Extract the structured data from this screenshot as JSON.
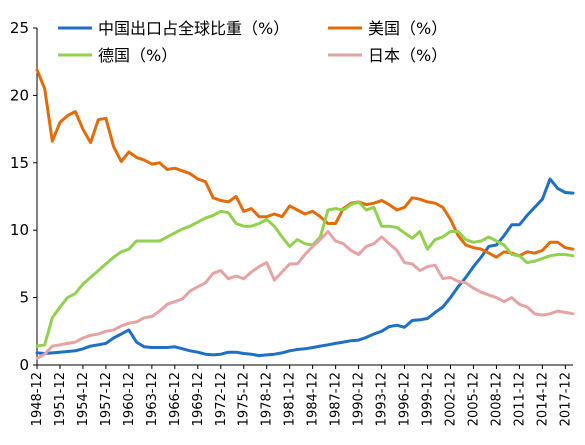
{
  "chart_data": {
    "type": "line",
    "title": "",
    "xlabel": "",
    "ylabel": "",
    "ylim": [
      0,
      25
    ],
    "yticks": [
      0,
      5,
      10,
      15,
      20,
      25
    ],
    "xlim": [
      1948,
      2018
    ],
    "xticks": [
      "1948-12",
      "1951-12",
      "1954-12",
      "1957-12",
      "1960-12",
      "1963-12",
      "1966-12",
      "1969-12",
      "1972-12",
      "1975-12",
      "1978-12",
      "1981-12",
      "1984-12",
      "1987-12",
      "1990-12",
      "1993-12",
      "1996-12",
      "1999-12",
      "2002-12",
      "2005-12",
      "2008-12",
      "2011-12",
      "2014-12",
      "2017-12"
    ],
    "grid": false,
    "legend_position": "top",
    "series": [
      {
        "name": "中国出口占全球比重（%）",
        "color": "#1F6FC5",
        "x": [
          1948,
          1949,
          1950,
          1951,
          1952,
          1953,
          1954,
          1955,
          1956,
          1957,
          1958,
          1959,
          1960,
          1961,
          1962,
          1963,
          1964,
          1965,
          1966,
          1967,
          1968,
          1969,
          1970,
          1971,
          1972,
          1973,
          1974,
          1975,
          1976,
          1977,
          1978,
          1979,
          1980,
          1981,
          1982,
          1983,
          1984,
          1985,
          1986,
          1987,
          1988,
          1989,
          1990,
          1991,
          1992,
          1993,
          1994,
          1995,
          1996,
          1997,
          1998,
          1999,
          2000,
          2001,
          2002,
          2003,
          2004,
          2005,
          2006,
          2007,
          2008,
          2009,
          2010,
          2011,
          2012,
          2013,
          2014,
          2015,
          2016,
          2017,
          2018
        ],
        "y": [
          0.9,
          0.85,
          0.9,
          0.95,
          1.0,
          1.05,
          1.2,
          1.4,
          1.5,
          1.6,
          2.0,
          2.3,
          2.6,
          1.7,
          1.35,
          1.3,
          1.3,
          1.3,
          1.35,
          1.2,
          1.05,
          0.95,
          0.8,
          0.75,
          0.8,
          0.95,
          0.95,
          0.85,
          0.8,
          0.7,
          0.75,
          0.8,
          0.9,
          1.05,
          1.15,
          1.2,
          1.3,
          1.4,
          1.5,
          1.6,
          1.7,
          1.8,
          1.85,
          2.05,
          2.3,
          2.5,
          2.85,
          2.95,
          2.8,
          3.3,
          3.35,
          3.45,
          3.9,
          4.3,
          5.0,
          5.8,
          6.5,
          7.3,
          8.0,
          8.8,
          8.9,
          9.6,
          10.4,
          10.4,
          11.1,
          11.7,
          12.3,
          13.8,
          13.1,
          12.8,
          12.75
        ]
      },
      {
        "name": "美国（%）",
        "color": "#E36C0A",
        "x": [
          1948,
          1949,
          1950,
          1951,
          1952,
          1953,
          1954,
          1955,
          1956,
          1957,
          1958,
          1959,
          1960,
          1961,
          1962,
          1963,
          1964,
          1965,
          1966,
          1967,
          1968,
          1969,
          1970,
          1971,
          1972,
          1973,
          1974,
          1975,
          1976,
          1977,
          1978,
          1979,
          1980,
          1981,
          1982,
          1983,
          1984,
          1985,
          1986,
          1987,
          1988,
          1989,
          1990,
          1991,
          1992,
          1993,
          1994,
          1995,
          1996,
          1997,
          1998,
          1999,
          2000,
          2001,
          2002,
          2003,
          2004,
          2005,
          2006,
          2007,
          2008,
          2009,
          2010,
          2011,
          2012,
          2013,
          2014,
          2015,
          2016,
          2017,
          2018
        ],
        "y": [
          21.9,
          20.5,
          16.6,
          18.0,
          18.5,
          18.8,
          17.5,
          16.5,
          18.2,
          18.3,
          16.2,
          15.1,
          15.8,
          15.4,
          15.2,
          14.9,
          15.0,
          14.5,
          14.6,
          14.4,
          14.2,
          13.8,
          13.6,
          12.4,
          12.2,
          12.1,
          12.5,
          11.4,
          11.6,
          11.0,
          11.0,
          11.2,
          11.0,
          11.8,
          11.5,
          11.2,
          11.4,
          11.0,
          10.5,
          10.5,
          11.6,
          12.0,
          12.1,
          11.9,
          12.0,
          12.2,
          11.9,
          11.5,
          11.7,
          12.4,
          12.3,
          12.1,
          12.0,
          11.7,
          10.8,
          9.6,
          8.9,
          8.7,
          8.6,
          8.3,
          8.0,
          8.4,
          8.3,
          8.1,
          8.4,
          8.3,
          8.5,
          9.1,
          9.1,
          8.7,
          8.6
        ]
      },
      {
        "name": "德国（%）",
        "color": "#92D050",
        "x": [
          1948,
          1949,
          1950,
          1951,
          1952,
          1953,
          1954,
          1955,
          1956,
          1957,
          1958,
          1959,
          1960,
          1961,
          1962,
          1963,
          1964,
          1965,
          1966,
          1967,
          1968,
          1969,
          1970,
          1971,
          1972,
          1973,
          1974,
          1975,
          1976,
          1977,
          1978,
          1979,
          1980,
          1981,
          1982,
          1983,
          1984,
          1985,
          1986,
          1987,
          1988,
          1989,
          1990,
          1991,
          1992,
          1993,
          1994,
          1995,
          1996,
          1997,
          1998,
          1999,
          2000,
          2001,
          2002,
          2003,
          2004,
          2005,
          2006,
          2007,
          2008,
          2009,
          2010,
          2011,
          2012,
          2013,
          2014,
          2015,
          2016,
          2017,
          2018
        ],
        "y": [
          1.4,
          1.5,
          3.5,
          4.3,
          5.0,
          5.3,
          6.0,
          6.5,
          7.0,
          7.5,
          8.0,
          8.4,
          8.6,
          9.2,
          9.2,
          9.2,
          9.2,
          9.5,
          9.8,
          10.1,
          10.3,
          10.6,
          10.9,
          11.1,
          11.4,
          11.3,
          10.5,
          10.3,
          10.3,
          10.5,
          10.8,
          10.3,
          9.5,
          8.8,
          9.3,
          9.0,
          8.9,
          9.5,
          11.5,
          11.6,
          11.5,
          11.9,
          12.1,
          11.5,
          11.7,
          10.3,
          10.3,
          10.2,
          9.8,
          9.4,
          9.9,
          8.6,
          9.3,
          9.5,
          9.9,
          9.9,
          9.3,
          9.1,
          9.2,
          9.5,
          9.2,
          8.9,
          8.2,
          8.1,
          7.6,
          7.7,
          7.9,
          8.1,
          8.2,
          8.2,
          8.1
        ]
      },
      {
        "name": "日本（%）",
        "color": "#E6A3A3",
        "x": [
          1948,
          1949,
          1950,
          1951,
          1952,
          1953,
          1954,
          1955,
          1956,
          1957,
          1958,
          1959,
          1960,
          1961,
          1962,
          1963,
          1964,
          1965,
          1966,
          1967,
          1968,
          1969,
          1970,
          1971,
          1972,
          1973,
          1974,
          1975,
          1976,
          1977,
          1978,
          1979,
          1980,
          1981,
          1982,
          1983,
          1984,
          1985,
          1986,
          1987,
          1988,
          1989,
          1990,
          1991,
          1992,
          1993,
          1994,
          1995,
          1996,
          1997,
          1998,
          1999,
          2000,
          2001,
          2002,
          2003,
          2004,
          2005,
          2006,
          2007,
          2008,
          2009,
          2010,
          2011,
          2012,
          2013,
          2014,
          2015,
          2016,
          2017,
          2018
        ],
        "y": [
          0.5,
          0.8,
          1.4,
          1.5,
          1.6,
          1.7,
          2.0,
          2.2,
          2.3,
          2.5,
          2.6,
          2.9,
          3.1,
          3.2,
          3.5,
          3.6,
          4.0,
          4.5,
          4.7,
          4.9,
          5.5,
          5.8,
          6.1,
          6.8,
          7.0,
          6.4,
          6.6,
          6.4,
          6.9,
          7.3,
          7.6,
          6.3,
          6.9,
          7.5,
          7.5,
          8.2,
          8.8,
          9.3,
          9.9,
          9.2,
          9.0,
          8.5,
          8.2,
          8.8,
          9.0,
          9.5,
          9.0,
          8.5,
          7.6,
          7.5,
          7.0,
          7.3,
          7.4,
          6.4,
          6.5,
          6.2,
          6.1,
          5.7,
          5.4,
          5.2,
          5.0,
          4.7,
          5.0,
          4.5,
          4.3,
          3.8,
          3.7,
          3.8,
          4.0,
          3.9,
          3.8
        ]
      }
    ]
  }
}
